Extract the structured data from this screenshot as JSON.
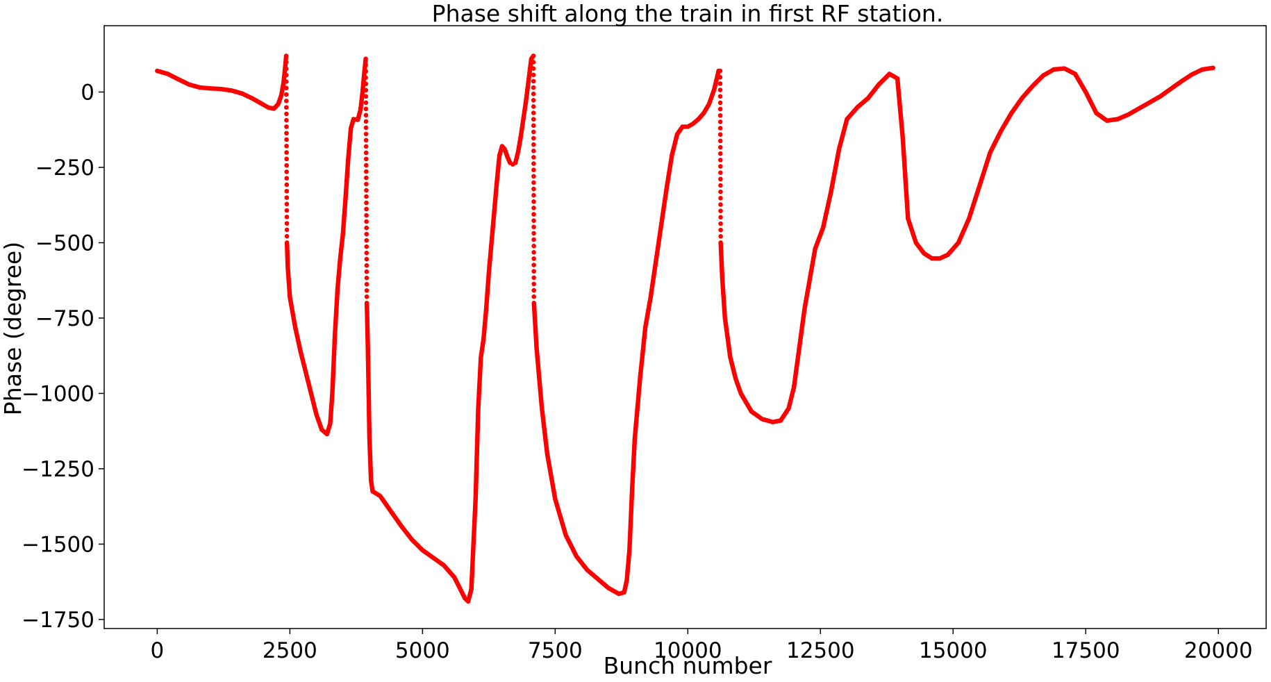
{
  "chart_data": {
    "type": "scatter",
    "title": "Phase shift along the train in first RF station.",
    "xlabel": "Bunch number",
    "ylabel": "Phase (degree)",
    "xlim": [
      -1000,
      20900
    ],
    "ylim": [
      -1780,
      220
    ],
    "xticks": [
      0,
      2500,
      5000,
      7500,
      10000,
      12500,
      15000,
      17500,
      20000
    ],
    "xtick_labels": [
      "0",
      "2500",
      "5000",
      "7500",
      "10000",
      "12500",
      "15000",
      "17500",
      "20000"
    ],
    "yticks": [
      0,
      -250,
      -500,
      -750,
      -1000,
      -1250,
      -1500,
      -1750
    ],
    "ytick_labels": [
      "0",
      "−250",
      "−500",
      "−750",
      "−1000",
      "−1250",
      "−1500",
      "−1750"
    ],
    "grid": false,
    "marker_color": "#ff0000",
    "series": [
      {
        "points": [
          [
            0,
            70
          ],
          [
            200,
            60
          ],
          [
            400,
            42
          ],
          [
            600,
            25
          ],
          [
            800,
            15
          ],
          [
            1000,
            12
          ],
          [
            1200,
            10
          ],
          [
            1400,
            5
          ],
          [
            1600,
            -5
          ],
          [
            1800,
            -22
          ],
          [
            2000,
            -42
          ],
          [
            2100,
            -52
          ],
          [
            2200,
            -55
          ],
          [
            2280,
            -40
          ],
          [
            2340,
            -10
          ],
          [
            2380,
            30
          ],
          [
            2410,
            80
          ],
          [
            2430,
            120
          ],
          [
            2445,
            -500
          ],
          [
            2460,
            -580
          ],
          [
            2500,
            -680
          ],
          [
            2600,
            -780
          ],
          [
            2700,
            -860
          ],
          [
            2800,
            -930
          ],
          [
            2900,
            -1000
          ],
          [
            3000,
            -1070
          ],
          [
            3100,
            -1120
          ],
          [
            3200,
            -1135
          ],
          [
            3260,
            -1100
          ],
          [
            3300,
            -1000
          ],
          [
            3350,
            -800
          ],
          [
            3400,
            -650
          ],
          [
            3450,
            -550
          ],
          [
            3500,
            -470
          ],
          [
            3550,
            -350
          ],
          [
            3600,
            -220
          ],
          [
            3650,
            -120
          ],
          [
            3700,
            -90
          ],
          [
            3780,
            -92
          ],
          [
            3830,
            -60
          ],
          [
            3870,
            0
          ],
          [
            3900,
            60
          ],
          [
            3930,
            110
          ],
          [
            3950,
            -700
          ],
          [
            3970,
            -850
          ],
          [
            4000,
            -1150
          ],
          [
            4030,
            -1290
          ],
          [
            4060,
            -1325
          ],
          [
            4200,
            -1340
          ],
          [
            4400,
            -1390
          ],
          [
            4600,
            -1440
          ],
          [
            4800,
            -1485
          ],
          [
            5000,
            -1520
          ],
          [
            5200,
            -1545
          ],
          [
            5400,
            -1570
          ],
          [
            5600,
            -1610
          ],
          [
            5800,
            -1680
          ],
          [
            5860,
            -1690
          ],
          [
            5920,
            -1650
          ],
          [
            5960,
            -1500
          ],
          [
            6000,
            -1350
          ],
          [
            6050,
            -1050
          ],
          [
            6100,
            -880
          ],
          [
            6150,
            -820
          ],
          [
            6200,
            -720
          ],
          [
            6250,
            -600
          ],
          [
            6300,
            -500
          ],
          [
            6350,
            -400
          ],
          [
            6400,
            -300
          ],
          [
            6450,
            -210
          ],
          [
            6500,
            -180
          ],
          [
            6550,
            -190
          ],
          [
            6600,
            -215
          ],
          [
            6650,
            -235
          ],
          [
            6700,
            -240
          ],
          [
            6750,
            -235
          ],
          [
            6800,
            -200
          ],
          [
            6850,
            -150
          ],
          [
            6900,
            -90
          ],
          [
            6950,
            -30
          ],
          [
            7000,
            40
          ],
          [
            7050,
            110
          ],
          [
            7090,
            120
          ],
          [
            7100,
            -700
          ],
          [
            7150,
            -850
          ],
          [
            7250,
            -1050
          ],
          [
            7350,
            -1200
          ],
          [
            7500,
            -1350
          ],
          [
            7700,
            -1470
          ],
          [
            7900,
            -1540
          ],
          [
            8100,
            -1585
          ],
          [
            8300,
            -1615
          ],
          [
            8500,
            -1645
          ],
          [
            8700,
            -1665
          ],
          [
            8800,
            -1660
          ],
          [
            8850,
            -1620
          ],
          [
            8900,
            -1520
          ],
          [
            8950,
            -1320
          ],
          [
            9000,
            -1150
          ],
          [
            9100,
            -950
          ],
          [
            9200,
            -780
          ],
          [
            9300,
            -680
          ],
          [
            9400,
            -560
          ],
          [
            9500,
            -440
          ],
          [
            9600,
            -320
          ],
          [
            9700,
            -210
          ],
          [
            9800,
            -140
          ],
          [
            9900,
            -115
          ],
          [
            10000,
            -115
          ],
          [
            10100,
            -105
          ],
          [
            10200,
            -90
          ],
          [
            10300,
            -70
          ],
          [
            10400,
            -40
          ],
          [
            10500,
            10
          ],
          [
            10580,
            70
          ],
          [
            10610,
            70
          ],
          [
            10620,
            -500
          ],
          [
            10650,
            -620
          ],
          [
            10700,
            -750
          ],
          [
            10800,
            -880
          ],
          [
            10900,
            -950
          ],
          [
            11000,
            -1000
          ],
          [
            11200,
            -1060
          ],
          [
            11400,
            -1085
          ],
          [
            11600,
            -1095
          ],
          [
            11750,
            -1090
          ],
          [
            11900,
            -1050
          ],
          [
            12000,
            -980
          ],
          [
            12100,
            -850
          ],
          [
            12200,
            -720
          ],
          [
            12300,
            -620
          ],
          [
            12400,
            -520
          ],
          [
            12550,
            -450
          ],
          [
            12700,
            -330
          ],
          [
            12850,
            -190
          ],
          [
            13000,
            -90
          ],
          [
            13200,
            -50
          ],
          [
            13400,
            -20
          ],
          [
            13600,
            25
          ],
          [
            13800,
            60
          ],
          [
            13950,
            45
          ],
          [
            14050,
            -150
          ],
          [
            14150,
            -420
          ],
          [
            14300,
            -500
          ],
          [
            14450,
            -535
          ],
          [
            14600,
            -552
          ],
          [
            14750,
            -552
          ],
          [
            14900,
            -540
          ],
          [
            15100,
            -500
          ],
          [
            15300,
            -420
          ],
          [
            15500,
            -310
          ],
          [
            15700,
            -200
          ],
          [
            15900,
            -130
          ],
          [
            16100,
            -70
          ],
          [
            16300,
            -20
          ],
          [
            16500,
            20
          ],
          [
            16700,
            55
          ],
          [
            16900,
            75
          ],
          [
            17100,
            78
          ],
          [
            17300,
            60
          ],
          [
            17500,
            0
          ],
          [
            17700,
            -70
          ],
          [
            17900,
            -95
          ],
          [
            18100,
            -90
          ],
          [
            18300,
            -75
          ],
          [
            18500,
            -55
          ],
          [
            18700,
            -35
          ],
          [
            18900,
            -15
          ],
          [
            19100,
            10
          ],
          [
            19300,
            35
          ],
          [
            19500,
            58
          ],
          [
            19700,
            75
          ],
          [
            19900,
            80
          ]
        ]
      }
    ]
  }
}
